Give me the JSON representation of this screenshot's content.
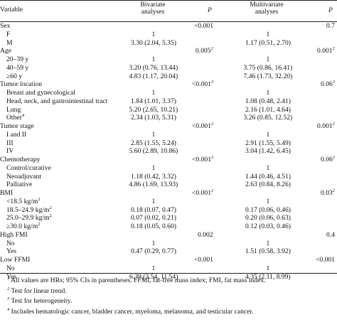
{
  "header": {
    "variable": "Variable",
    "bivariate": "Bivariate analyses",
    "p_bivariate": "P",
    "multivariate": "Multivariate analyses",
    "p_multivariate": "P"
  },
  "groups": [
    {
      "label": "Sex",
      "p_bivariate": "<0.001",
      "p_multivariate": "0.7",
      "items": [
        {
          "label": "F",
          "bivariate": "1",
          "multivariate": "1"
        },
        {
          "label": "M",
          "bivariate": "3.30 (2.04, 5.35)",
          "multivariate": "1.17 (0.51, 2.70)"
        }
      ]
    },
    {
      "label": "Age",
      "p_bivariate": {
        "text": "0.005",
        "sup": "2"
      },
      "p_multivariate": {
        "text": "0.001",
        "sup": "2"
      },
      "items": [
        {
          "label": "20–39 y",
          "bivariate": "1",
          "multivariate": "1"
        },
        {
          "label": "40–59 y",
          "bivariate": "3.20 (0.76, 13.44)",
          "multivariate": "3.75 (0.86, 16.41)"
        },
        {
          "label": "≥60 y",
          "bivariate": "4.83 (1.17, 20.04)",
          "multivariate": "7.46 (1.73, 32.20)"
        }
      ]
    },
    {
      "label": "Tumor location",
      "p_bivariate": {
        "text": "<0.001",
        "sup": "3"
      },
      "p_multivariate": {
        "text": "0.06",
        "sup": "3"
      },
      "items": [
        {
          "label": "Breast and gynecological",
          "bivariate": "1",
          "multivariate": "1"
        },
        {
          "label": "Head, neck, and gastrointestinal tract",
          "bivariate": "1.84 (1.01, 3.37)",
          "multivariate": "1.08 (0.48, 2.41)"
        },
        {
          "label": "Lung",
          "bivariate": "5.20 (2.65, 10.21)",
          "multivariate": "2.16 (1.01, 4.64)"
        },
        {
          "label": {
            "text": "Other",
            "sup": "4"
          },
          "bivariate": "2.34 (1.03, 5.31)",
          "multivariate": "3.26 (0.85, 12.52)"
        }
      ]
    },
    {
      "label": "Tumor stage",
      "p_bivariate": {
        "text": "<0.001",
        "sup": "2"
      },
      "p_multivariate": {
        "text": "0.001",
        "sup": "2"
      },
      "items": [
        {
          "label": "I and II",
          "bivariate": "1",
          "multivariate": "1"
        },
        {
          "label": "III",
          "bivariate": "2.85 (1.55, 5.24)",
          "multivariate": "2.91 (1.55, 5.49)"
        },
        {
          "label": "IV",
          "bivariate": "5.60 (2.89, 10.86)",
          "multivariate": "3.04 (1.42, 6.45)"
        }
      ]
    },
    {
      "label": "Chemotherapy",
      "p_bivariate": {
        "text": "<0.001",
        "sup": "2"
      },
      "p_multivariate": {
        "text": "0.06",
        "sup": "2"
      },
      "items": [
        {
          "label": "Control/curative",
          "bivariate": "1",
          "multivariate": "1"
        },
        {
          "label": "Neoadjuvant",
          "bivariate": "1.18 (0.42, 3.32)",
          "multivariate": "1.44 (0.46, 4.51)"
        },
        {
          "label": "Palliative",
          "bivariate": "4.86 (1.69, 13.93)",
          "multivariate": "2.63 (0.84, 8.26)"
        }
      ]
    },
    {
      "label": "BMI",
      "p_bivariate": {
        "text": "<0.001",
        "sup": "2"
      },
      "p_multivariate": {
        "text": "0.03",
        "sup": "2"
      },
      "items": [
        {
          "label": {
            "text": "<18.5 kg/m",
            "sup": "2"
          },
          "bivariate": "1",
          "multivariate": "1"
        },
        {
          "label": {
            "text": "18.5–24.9 kg/m",
            "sup": "2"
          },
          "bivariate": "0.18 (0.07, 0.47)",
          "multivariate": "0.17 (0.06, 0.46)"
        },
        {
          "label": {
            "text": "25.0–29.9 kg/m",
            "sup": "2"
          },
          "bivariate": "0.07 (0.02, 0.21)",
          "multivariate": "0.20 (0.06, 0.63)"
        },
        {
          "label": {
            "text": "≥30.0 kg/m",
            "sup": "2"
          },
          "bivariate": "0.18 (0.05, 0.60)",
          "multivariate": "0.12 (0.03, 0.46)"
        }
      ]
    },
    {
      "label": "High FMI",
      "p_bivariate": "0.002",
      "p_multivariate": "0.4",
      "items": [
        {
          "label": "No",
          "bivariate": "1",
          "multivariate": "1"
        },
        {
          "label": "Yes",
          "bivariate": "0.47 (0.29, 0.77)",
          "multivariate": "1.51 (0.58, 3.92)"
        }
      ]
    },
    {
      "label": "Low FFMI",
      "p_bivariate": "<0.001",
      "p_multivariate": "<0.001",
      "items": [
        {
          "label": "No",
          "bivariate": "1",
          "multivariate": "1"
        },
        {
          "label": "Yes",
          "bivariate": "6.39 (3.54, 11.54)",
          "multivariate": "4.35 (2.11, 8.99)"
        }
      ]
    }
  ],
  "footnotes": [
    {
      "mark": "1",
      "text": "All values are HRs; 95% CIs in parentheses. FFMI, fat-free mass index; FMI, fat mass index."
    },
    {
      "mark": "2",
      "text": "Test for linear trend."
    },
    {
      "mark": "3",
      "text": "Test for heterogeneity."
    },
    {
      "mark": "4",
      "text": "Includes hematologic cancer, bladder cancer, myeloma, melanoma, and testicular cancer."
    }
  ]
}
